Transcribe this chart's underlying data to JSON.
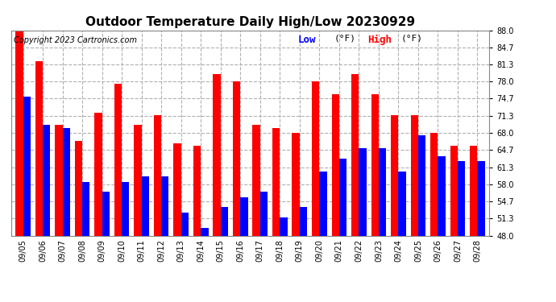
{
  "title": "Outdoor Temperature Daily High/Low 20230929",
  "copyright": "Copyright 2023 Cartronics.com",
  "legend_low": "Low",
  "legend_high": "High",
  "legend_unit": "(°F)",
  "ylim": [
    48.0,
    88.0
  ],
  "yticks": [
    48.0,
    51.3,
    54.7,
    58.0,
    61.3,
    64.7,
    68.0,
    71.3,
    74.7,
    78.0,
    81.3,
    84.7,
    88.0
  ],
  "dates": [
    "09/05",
    "09/06",
    "09/07",
    "09/08",
    "09/09",
    "09/10",
    "09/11",
    "09/12",
    "09/13",
    "09/14",
    "09/15",
    "09/16",
    "09/17",
    "09/18",
    "09/19",
    "09/20",
    "09/21",
    "09/22",
    "09/23",
    "09/24",
    "09/25",
    "09/26",
    "09/27",
    "09/28"
  ],
  "highs": [
    88.0,
    82.0,
    69.5,
    66.5,
    72.0,
    77.5,
    69.5,
    71.5,
    66.0,
    65.5,
    79.5,
    78.0,
    69.5,
    69.0,
    68.0,
    78.0,
    75.5,
    79.5,
    75.5,
    71.5,
    71.5,
    68.0,
    65.5,
    65.5
  ],
  "lows": [
    75.0,
    69.5,
    69.0,
    58.5,
    56.5,
    58.5,
    59.5,
    59.5,
    52.5,
    49.5,
    53.5,
    55.5,
    56.5,
    51.5,
    53.5,
    60.5,
    63.0,
    65.0,
    65.0,
    60.5,
    67.5,
    63.5,
    62.5,
    62.5
  ],
  "bar_color_high": "#ff0000",
  "bar_color_low": "#0000ff",
  "background_color": "#ffffff",
  "grid_color": "#b0b0b0",
  "title_fontsize": 11,
  "copyright_fontsize": 7,
  "legend_fontsize": 9,
  "tick_fontsize": 7,
  "bar_baseline": 48.0
}
